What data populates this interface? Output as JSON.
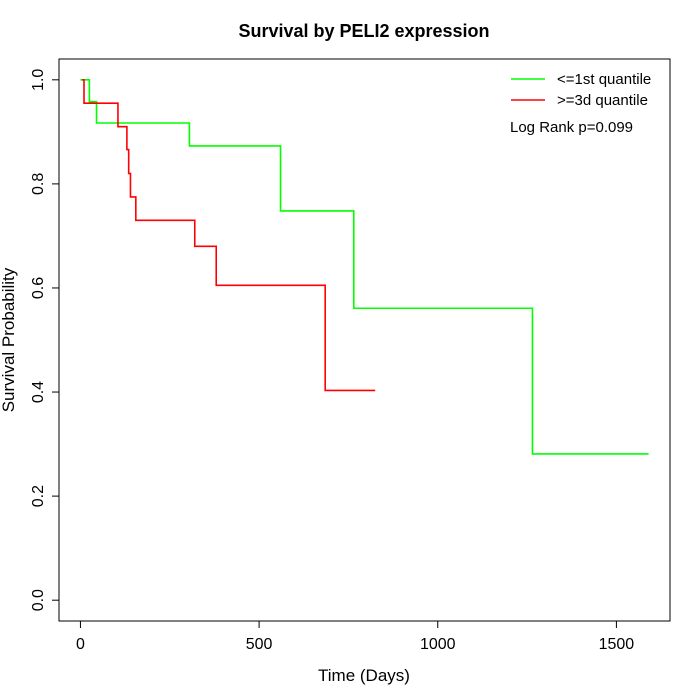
{
  "chart_data": {
    "type": "line",
    "title": "Survival by PELI2 expression",
    "xlabel": "Time (Days)",
    "ylabel": "Survival Probability",
    "xlim": [
      -60,
      1650
    ],
    "ylim": [
      -0.04,
      1.04
    ],
    "x_ticks": [
      0,
      500,
      1000,
      1500
    ],
    "x_tick_labels": [
      "0",
      "500",
      "1000",
      "1500"
    ],
    "y_ticks": [
      0.0,
      0.2,
      0.4,
      0.6,
      0.8,
      1.0
    ],
    "y_tick_labels": [
      "0.0",
      "0.2",
      "0.4",
      "0.6",
      "0.8",
      "1.0"
    ],
    "grid": false,
    "legend_position": "top-right",
    "annotation": "Log Rank p=0.099",
    "series": [
      {
        "name": "<=1st quantile",
        "color": "#00ff00",
        "step_x": [
          0,
          25,
          45,
          305,
          560,
          765,
          1265,
          1590
        ],
        "step_y": [
          1.0,
          0.958,
          0.917,
          0.873,
          0.748,
          0.561,
          0.281,
          0.281
        ]
      },
      {
        "name": ">=3d quantile",
        "color": "#ff0000",
        "step_x": [
          5,
          10,
          105,
          130,
          135,
          140,
          155,
          175,
          320,
          380,
          685,
          825
        ],
        "step_y": [
          1.0,
          0.955,
          0.91,
          0.866,
          0.82,
          0.775,
          0.73,
          0.73,
          0.68,
          0.605,
          0.403,
          0.403
        ]
      }
    ]
  }
}
